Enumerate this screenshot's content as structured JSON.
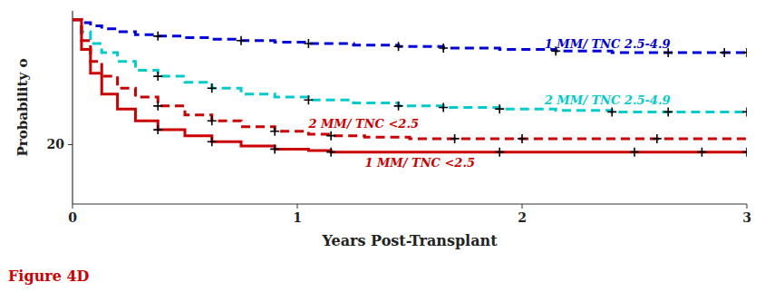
{
  "chart_data": {
    "type": "step",
    "x_label": "Years Post-Transplant",
    "y_label": "Probability o",
    "xlim": [
      0,
      3
    ],
    "ylim": [
      0,
      65
    ],
    "xticks": [
      0,
      1,
      2,
      3
    ],
    "yticks": [
      20
    ],
    "marker": "plus",
    "series": [
      {
        "color": "#0000dd",
        "line_style": "dashed",
        "x": [
          0.0,
          0.04,
          0.08,
          0.13,
          0.2,
          0.28,
          0.38,
          0.5,
          0.62,
          0.75,
          0.9,
          1.05,
          1.25,
          1.45,
          1.65,
          1.9,
          2.15,
          2.4,
          2.65,
          2.9,
          3.0
        ],
        "values": [
          62,
          61,
          60,
          59,
          58,
          57,
          56.5,
          56,
          55.5,
          55,
          54.5,
          54,
          53.5,
          53,
          52.5,
          52,
          51.5,
          51,
          51,
          51,
          51
        ],
        "censor_x": [
          0.38,
          0.75,
          1.05,
          1.45,
          1.65,
          2.15,
          2.65,
          2.9,
          3.0
        ],
        "censor_y": [
          56.5,
          55,
          54,
          53,
          52.5,
          51.5,
          51,
          51,
          51
        ]
      },
      {
        "color": "#00cccc",
        "line_style": "dashed",
        "x": [
          0.0,
          0.04,
          0.08,
          0.13,
          0.2,
          0.28,
          0.38,
          0.5,
          0.62,
          0.75,
          0.9,
          1.05,
          1.25,
          1.45,
          1.65,
          1.9,
          2.15,
          2.4,
          2.65,
          2.9,
          3.0
        ],
        "values": [
          62,
          58,
          54,
          51,
          48,
          45,
          43,
          41,
          39,
          37,
          36,
          35,
          34,
          33,
          32.5,
          32,
          31.5,
          31,
          31,
          31,
          31
        ],
        "censor_x": [
          0.38,
          0.62,
          1.05,
          1.45,
          1.65,
          1.9,
          2.4,
          2.65,
          3.0
        ],
        "censor_y": [
          43,
          39,
          35,
          33,
          32.5,
          32,
          31,
          31,
          31
        ]
      },
      {
        "color": "#cc0000",
        "line_style": "dashed",
        "x": [
          0.0,
          0.04,
          0.08,
          0.13,
          0.2,
          0.28,
          0.38,
          0.5,
          0.62,
          0.75,
          0.9,
          1.05,
          1.15,
          1.3,
          1.5,
          1.7,
          2.0,
          2.3,
          2.6,
          2.85,
          3.0
        ],
        "values": [
          62,
          55,
          48,
          43,
          39,
          36,
          33,
          30,
          28,
          26,
          24.5,
          23.5,
          23,
          22.5,
          22,
          22,
          22,
          22,
          22,
          22,
          22
        ],
        "censor_x": [
          0.38,
          0.62,
          0.9,
          1.15,
          1.7,
          2.0,
          2.6
        ],
        "censor_y": [
          33,
          28,
          24.5,
          23,
          22,
          22,
          22
        ]
      },
      {
        "color": "#cc0000",
        "line_style": "solid",
        "x": [
          0.0,
          0.04,
          0.08,
          0.13,
          0.2,
          0.28,
          0.38,
          0.5,
          0.62,
          0.75,
          0.9,
          1.05,
          1.15,
          1.25,
          1.4,
          1.6,
          1.9,
          2.2,
          2.5,
          2.8,
          3.0
        ],
        "values": [
          62,
          52,
          44,
          37,
          32,
          28,
          25,
          23,
          21,
          19.5,
          18.5,
          18,
          17.5,
          17.5,
          17.5,
          17.5,
          17.5,
          17.5,
          17.5,
          17.5,
          17.5
        ],
        "censor_x": [
          0.38,
          0.62,
          0.9,
          1.15,
          1.9,
          2.5,
          2.8,
          3.0
        ],
        "censor_y": [
          25,
          21,
          18.5,
          17.5,
          17.5,
          17.5,
          17.5,
          17.5
        ]
      }
    ],
    "annotations": [
      {
        "text": "1 MM/ TNC 2.5-4.9",
        "x": 2.1,
        "y": 52.5,
        "color": "#0000dd"
      },
      {
        "text": "2 MM/ TNC 2.5-4.9",
        "x": 2.1,
        "y": 33.5,
        "color": "#00cccc"
      },
      {
        "text": "2 MM/ TNC <2.5",
        "x": 1.05,
        "y": 25.5,
        "color": "#cc0000"
      },
      {
        "text": "1 MM/ TNC <2.5",
        "x": 1.3,
        "y": 12.5,
        "color": "#cc0000"
      },
      {
        "text": "Figure 4D",
        "color": "#cc0000"
      }
    ]
  }
}
